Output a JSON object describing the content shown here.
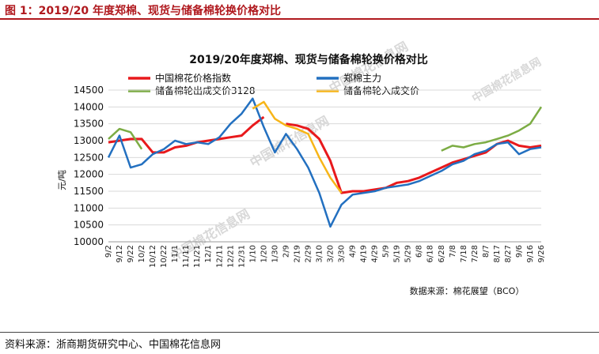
{
  "figure_label": "图 1：2019/20 年度郑棉、现货与储备棉轮换价格对比",
  "source": "资料来源：浙商期货研究中心、中国棉花信息网",
  "watermarks": [
    "中国棉花信息网",
    "中国棉花信息网",
    "中国棉花信息网",
    "中国棉花信息网"
  ],
  "chart_data": {
    "type": "line",
    "title": "2019/20年度郑棉、现货与储备棉轮换价格对比",
    "ylabel": "元/吨",
    "ylim": [
      10000,
      14500
    ],
    "yticks": [
      10000,
      10500,
      11000,
      11500,
      12000,
      12500,
      13000,
      13500,
      14000,
      14500
    ],
    "xlabels": [
      "9/2",
      "9/12",
      "9/22",
      "10/2",
      "10/12",
      "10/22",
      "11/1",
      "11/11",
      "11/21",
      "12/1",
      "12/11",
      "12/21",
      "12/31",
      "1/10",
      "1/20",
      "1/30",
      "2/9",
      "2/19",
      "2/29",
      "3/10",
      "3/20",
      "3/30",
      "4/9",
      "4/19",
      "4/29",
      "5/9",
      "5/19",
      "5/29",
      "6/8",
      "6/18",
      "6/28",
      "7/8",
      "7/18",
      "7/28",
      "8/7",
      "8/17",
      "8/27",
      "9/6",
      "9/16",
      "9/26"
    ],
    "data_source_note": "数据来源：棉花展望（BCO）",
    "grid": "horizontal",
    "legend_position": "top",
    "series": [
      {
        "name": "中国棉花价格指数",
        "color": "#e8191c",
        "values": [
          12950,
          13000,
          13050,
          13050,
          12650,
          12650,
          12800,
          12850,
          12950,
          13000,
          13050,
          13100,
          13150,
          13450,
          13700,
          null,
          13500,
          13450,
          13350,
          13050,
          12400,
          11450,
          11500,
          11500,
          11550,
          11600,
          11750,
          11800,
          11900,
          12050,
          12200,
          12350,
          12450,
          12550,
          12650,
          12900,
          13000,
          12850,
          12800,
          12850
        ]
      },
      {
        "name": "郑棉主力",
        "color": "#2370c0",
        "values": [
          12500,
          13150,
          12200,
          12300,
          12600,
          12750,
          13000,
          12900,
          12950,
          12900,
          13100,
          13500,
          13800,
          14250,
          13400,
          12650,
          13200,
          12750,
          12200,
          11450,
          10450,
          11100,
          11400,
          11450,
          11500,
          11600,
          11650,
          11700,
          11800,
          11950,
          12100,
          12300,
          12400,
          12600,
          12700,
          12900,
          12950,
          12600,
          12750,
          12800
        ]
      },
      {
        "name": "储备棉轮出成交价3128",
        "color": "#7cac44",
        "values": [
          13050,
          13350,
          13250,
          12750,
          null,
          null,
          null,
          null,
          null,
          null,
          null,
          null,
          null,
          null,
          null,
          null,
          null,
          null,
          null,
          null,
          null,
          null,
          null,
          null,
          null,
          null,
          null,
          null,
          null,
          null,
          12700,
          12850,
          12800,
          12900,
          12950,
          13050,
          13150,
          13300,
          13500,
          14000
        ]
      },
      {
        "name": "储备棉轮入成交价",
        "color": "#f7b518",
        "values": [
          null,
          null,
          null,
          null,
          null,
          null,
          null,
          null,
          null,
          null,
          null,
          null,
          null,
          13950,
          14150,
          13650,
          13450,
          13350,
          13200,
          12500,
          11900,
          11450,
          null,
          null,
          null,
          null,
          null,
          null,
          null,
          null,
          null,
          null,
          null,
          null,
          null,
          null,
          null,
          null,
          null,
          null
        ]
      }
    ]
  }
}
